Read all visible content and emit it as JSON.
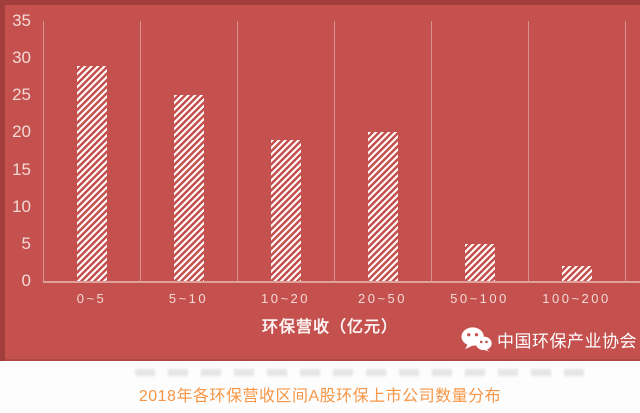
{
  "chart_data": {
    "type": "bar",
    "categories": [
      "0~5",
      "5~10",
      "10~20",
      "20~50",
      "50~100",
      "100~200"
    ],
    "values": [
      29,
      25,
      19,
      20,
      5,
      2
    ],
    "title": "",
    "xlabel": "环保营收（亿元）",
    "ylabel": "",
    "ylim": [
      0,
      35
    ],
    "yticks": [
      0,
      5,
      10,
      15,
      20,
      25,
      30,
      35
    ],
    "grid": "vertical category separators only",
    "legend": "none",
    "bar_style": "white diagonal hatch (/) on red background"
  },
  "watermark": {
    "icon": "wechat-icon",
    "label": "中国环保产业协会"
  },
  "caption": "2018年各环保营收区间A股环保上市公司数量分布",
  "colors": {
    "background": "#c5514e",
    "edge_dark": "#a23f3d",
    "gridline": "#d9918c",
    "baseline": "#dfa09b",
    "tick_label": "#f3d9d6",
    "axis_title": "#fcf2f1",
    "watermark": "#ffffff",
    "caption": "#f79646",
    "caption_bg": "#fdfdfd"
  }
}
